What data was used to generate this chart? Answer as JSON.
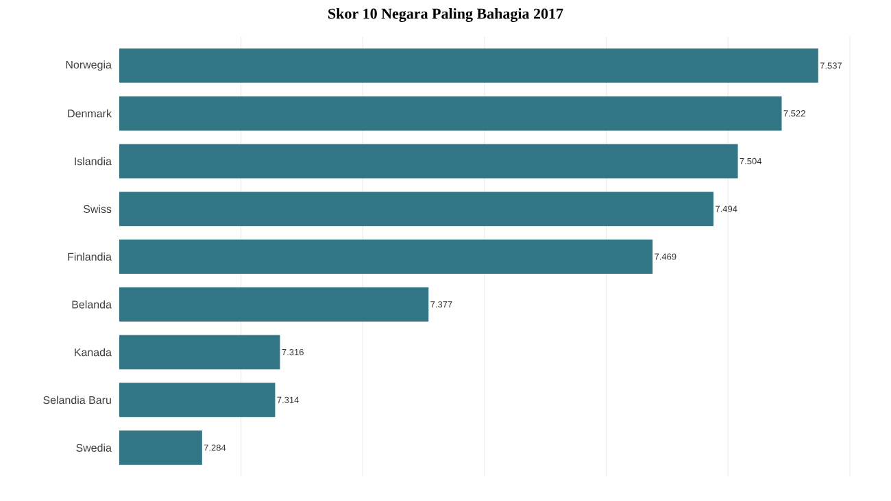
{
  "chart_data": {
    "type": "bar",
    "orientation": "horizontal",
    "title": "Skor 10 Negara Paling Bahagia 2017",
    "categories": [
      "Norwegia",
      "Denmark",
      "Islandia",
      "Swiss",
      "Finlandia",
      "Belanda",
      "Kanada",
      "Selandia Baru",
      "Swedia"
    ],
    "values": [
      7.537,
      7.522,
      7.504,
      7.494,
      7.469,
      7.377,
      7.316,
      7.314,
      7.284
    ],
    "value_labels": [
      "7.537",
      "7.522",
      "7.504",
      "7.494",
      "7.469",
      "7.377",
      "7.316",
      "7.314",
      "7.284"
    ],
    "color": "#327585",
    "xlim": [
      7.25,
      7.55
    ],
    "xticks": [
      {
        "value": 7.3,
        "label": null
      },
      {
        "value": 7.35,
        "label": null
      },
      {
        "value": 7.4,
        "label": null
      },
      {
        "value": 7.45,
        "label": null
      },
      {
        "value": 7.5,
        "label": null
      },
      {
        "value": 7.55,
        "label": null
      }
    ],
    "grid": "x",
    "tick_labels": "y"
  }
}
